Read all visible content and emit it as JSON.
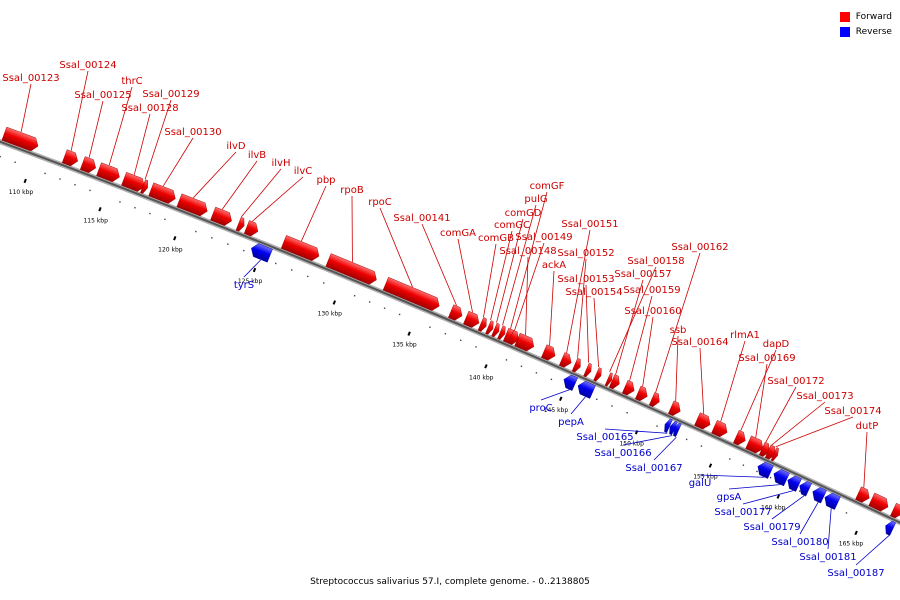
{
  "footer": "Streptococcus salivarius 57.I, complete genome. - 0..2138805",
  "legend": [
    {
      "label": "Forward",
      "color": "#ff0000"
    },
    {
      "label": "Reverse",
      "color": "#0000ff"
    }
  ],
  "ticks": [
    {
      "label": "110 kbp"
    },
    {
      "label": "115 kbp"
    },
    {
      "label": "120 kbp"
    },
    {
      "label": "125 kbp"
    },
    {
      "label": "130 kbp"
    },
    {
      "label": "135 kbp"
    },
    {
      "label": "140 kbp"
    },
    {
      "label": "145 kbp"
    },
    {
      "label": "150 kbp"
    },
    {
      "label": "155 kbp"
    },
    {
      "label": "160 kbp"
    },
    {
      "label": "165 kbp"
    }
  ],
  "genes": [
    {
      "name": "Ssal_00123",
      "strand": "forward"
    },
    {
      "name": "Ssal_00124",
      "strand": "forward"
    },
    {
      "name": "Ssal_00125",
      "strand": "forward"
    },
    {
      "name": "thrC",
      "strand": "forward"
    },
    {
      "name": "Ssal_00128",
      "strand": "forward"
    },
    {
      "name": "Ssal_00129",
      "strand": "forward"
    },
    {
      "name": "Ssal_00130",
      "strand": "forward"
    },
    {
      "name": "ilvD",
      "strand": "forward"
    },
    {
      "name": "ilvB",
      "strand": "forward"
    },
    {
      "name": "ilvH",
      "strand": "forward"
    },
    {
      "name": "ilvC",
      "strand": "forward"
    },
    {
      "name": "pbp",
      "strand": "forward"
    },
    {
      "name": "rpoB",
      "strand": "forward"
    },
    {
      "name": "rpoC",
      "strand": "forward"
    },
    {
      "name": "Ssal_00141",
      "strand": "forward"
    },
    {
      "name": "comGA",
      "strand": "forward"
    },
    {
      "name": "comGB",
      "strand": "forward"
    },
    {
      "name": "comGC",
      "strand": "forward"
    },
    {
      "name": "comGD",
      "strand": "forward"
    },
    {
      "name": "pulG",
      "strand": "forward"
    },
    {
      "name": "comGF",
      "strand": "forward"
    },
    {
      "name": "Ssal_00148",
      "strand": "forward"
    },
    {
      "name": "Ssal_00149",
      "strand": "forward"
    },
    {
      "name": "ackA",
      "strand": "forward"
    },
    {
      "name": "Ssal_00151",
      "strand": "forward"
    },
    {
      "name": "Ssal_00152",
      "strand": "forward"
    },
    {
      "name": "Ssal_00153",
      "strand": "forward"
    },
    {
      "name": "Ssal_00154",
      "strand": "forward"
    },
    {
      "name": "Ssal_00157",
      "strand": "forward"
    },
    {
      "name": "Ssal_00158",
      "strand": "forward"
    },
    {
      "name": "Ssal_00159",
      "strand": "forward"
    },
    {
      "name": "Ssal_00160",
      "strand": "forward"
    },
    {
      "name": "Ssal_00162",
      "strand": "forward"
    },
    {
      "name": "ssb",
      "strand": "forward"
    },
    {
      "name": "Ssal_00164",
      "strand": "forward"
    },
    {
      "name": "rlmA1",
      "strand": "forward"
    },
    {
      "name": "dapD",
      "strand": "forward"
    },
    {
      "name": "Ssal_00169",
      "strand": "forward"
    },
    {
      "name": "Ssal_00172",
      "strand": "forward"
    },
    {
      "name": "Ssal_00173",
      "strand": "forward"
    },
    {
      "name": "Ssal_00174",
      "strand": "forward"
    },
    {
      "name": "dutP",
      "strand": "forward"
    },
    {
      "name": "tyrS",
      "strand": "reverse"
    },
    {
      "name": "proC",
      "strand": "reverse"
    },
    {
      "name": "pepA",
      "strand": "reverse"
    },
    {
      "name": "Ssal_00165",
      "strand": "reverse"
    },
    {
      "name": "Ssal_00166",
      "strand": "reverse"
    },
    {
      "name": "Ssal_00167",
      "strand": "reverse"
    },
    {
      "name": "galU",
      "strand": "reverse"
    },
    {
      "name": "gpsA",
      "strand": "reverse"
    },
    {
      "name": "Ssal_00177",
      "strand": "reverse"
    },
    {
      "name": "Ssal_00179",
      "strand": "reverse"
    },
    {
      "name": "Ssal_00180",
      "strand": "reverse"
    },
    {
      "name": "Ssal_00181",
      "strand": "reverse"
    },
    {
      "name": "Ssal_00187",
      "strand": "reverse"
    }
  ]
}
